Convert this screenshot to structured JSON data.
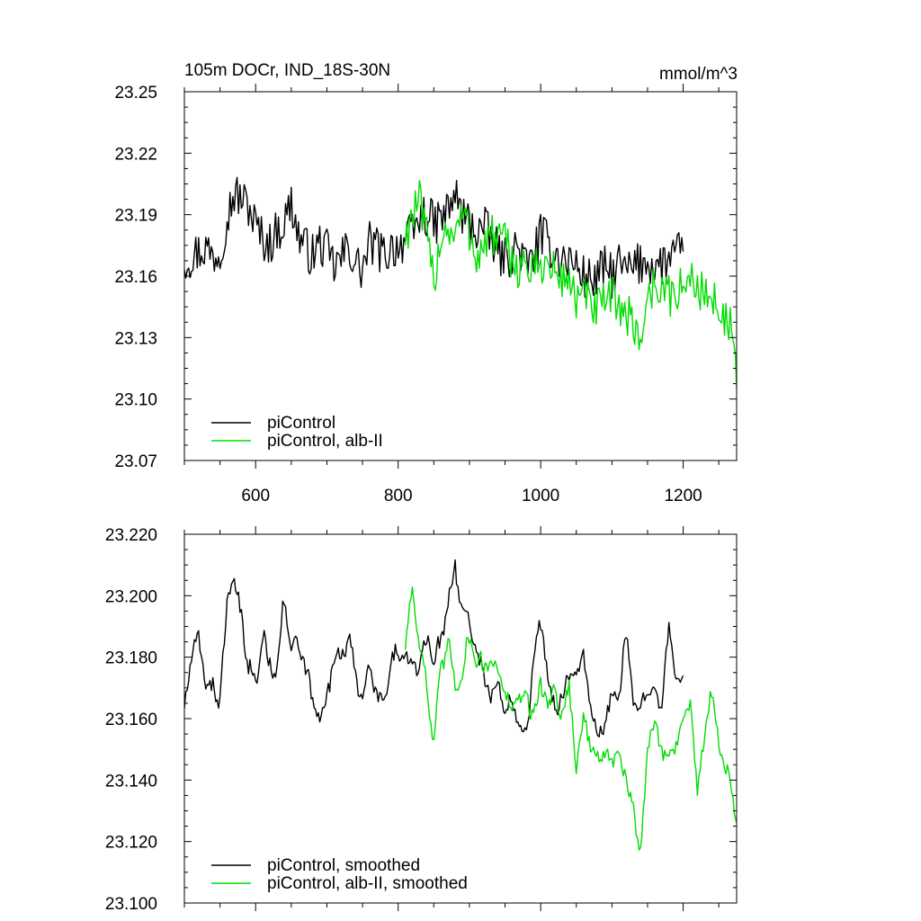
{
  "chart_data": [
    {
      "type": "line",
      "title": "105m DOCr, IND_18S-30N",
      "units": "mmol/m^3",
      "xlim": [
        500,
        1275
      ],
      "ylim": [
        23.07,
        23.25
      ],
      "x_ticks": [
        600,
        800,
        1000,
        1200
      ],
      "x_tick_labels": [
        "600",
        "800",
        "1000",
        "1200"
      ],
      "y_ticks": [
        23.07,
        23.1,
        23.13,
        23.16,
        23.19,
        23.22,
        23.25
      ],
      "y_tick_labels": [
        "23.07",
        "23.10",
        "23.13",
        "23.16",
        "23.19",
        "23.22",
        "23.25"
      ],
      "grid": false,
      "legend_position": "bottom-left",
      "series": [
        {
          "name": "piControl",
          "color": "#000000",
          "x": [
            500,
            510,
            520,
            530,
            540,
            550,
            560,
            570,
            580,
            590,
            600,
            610,
            620,
            630,
            640,
            650,
            660,
            670,
            680,
            690,
            700,
            710,
            720,
            730,
            740,
            750,
            760,
            770,
            780,
            790,
            800,
            810,
            820,
            830,
            840,
            850,
            860,
            870,
            880,
            890,
            900,
            910,
            920,
            930,
            940,
            950,
            960,
            970,
            980,
            990,
            1000,
            1010,
            1020,
            1030,
            1040,
            1050,
            1060,
            1070,
            1080,
            1090,
            1100,
            1110,
            1120,
            1130,
            1140,
            1150,
            1160,
            1170,
            1180,
            1190,
            1200
          ],
          "values": [
            23.168,
            23.17,
            23.172,
            23.174,
            23.17,
            23.172,
            23.19,
            23.2,
            23.198,
            23.194,
            23.185,
            23.178,
            23.176,
            23.182,
            23.186,
            23.196,
            23.18,
            23.174,
            23.17,
            23.176,
            23.172,
            23.165,
            23.168,
            23.175,
            23.166,
            23.163,
            23.176,
            23.174,
            23.17,
            23.174,
            23.175,
            23.178,
            23.18,
            23.188,
            23.19,
            23.185,
            23.188,
            23.192,
            23.2,
            23.19,
            23.186,
            23.182,
            23.184,
            23.178,
            23.172,
            23.168,
            23.172,
            23.174,
            23.164,
            23.17,
            23.18,
            23.176,
            23.172,
            23.168,
            23.168,
            23.165,
            23.16,
            23.158,
            23.16,
            23.164,
            23.16,
            23.166,
            23.162,
            23.164,
            23.166,
            23.168,
            23.164,
            23.166,
            23.168,
            23.17,
            23.172
          ]
        },
        {
          "name": "piControl, alb-II",
          "color": "#00dd00",
          "x": [
            810,
            820,
            830,
            840,
            850,
            860,
            870,
            880,
            890,
            900,
            910,
            920,
            930,
            940,
            950,
            960,
            970,
            980,
            990,
            1000,
            1010,
            1020,
            1030,
            1040,
            1050,
            1060,
            1070,
            1080,
            1090,
            1100,
            1110,
            1120,
            1130,
            1140,
            1150,
            1160,
            1170,
            1180,
            1190,
            1200,
            1210,
            1220,
            1230,
            1240,
            1250,
            1260,
            1270,
            1275
          ],
          "values": [
            23.18,
            23.19,
            23.196,
            23.178,
            23.158,
            23.18,
            23.184,
            23.18,
            23.19,
            23.182,
            23.17,
            23.174,
            23.18,
            23.178,
            23.176,
            23.168,
            23.164,
            23.166,
            23.16,
            23.168,
            23.164,
            23.162,
            23.158,
            23.16,
            23.148,
            23.15,
            23.146,
            23.144,
            23.146,
            23.15,
            23.148,
            23.14,
            23.138,
            23.128,
            23.15,
            23.156,
            23.154,
            23.15,
            23.152,
            23.154,
            23.158,
            23.156,
            23.152,
            23.146,
            23.148,
            23.138,
            23.132,
            23.105
          ]
        }
      ]
    },
    {
      "type": "line",
      "xlim": [
        500,
        1275
      ],
      "ylim": [
        23.1,
        23.22
      ],
      "x_ticks": [
        600,
        800,
        1000,
        1200
      ],
      "y_ticks": [
        23.1,
        23.12,
        23.14,
        23.16,
        23.18,
        23.2,
        23.22
      ],
      "y_tick_labels": [
        "23.100",
        "23.120",
        "23.140",
        "23.160",
        "23.180",
        "23.200",
        "23.220"
      ],
      "grid": false,
      "legend_position": "bottom-left",
      "series": [
        {
          "name": "piControl, smoothed",
          "color": "#000000",
          "x": [
            500,
            510,
            520,
            530,
            540,
            550,
            560,
            570,
            580,
            590,
            600,
            610,
            620,
            630,
            640,
            650,
            660,
            670,
            680,
            690,
            700,
            710,
            720,
            730,
            740,
            750,
            760,
            770,
            780,
            790,
            800,
            810,
            820,
            830,
            840,
            850,
            860,
            870,
            880,
            890,
            900,
            910,
            920,
            930,
            940,
            950,
            960,
            970,
            980,
            990,
            1000,
            1010,
            1020,
            1030,
            1040,
            1050,
            1060,
            1070,
            1080,
            1090,
            1100,
            1110,
            1120,
            1130,
            1140,
            1150,
            1160,
            1170,
            1180,
            1190,
            1200
          ],
          "values": [
            23.166,
            23.178,
            23.188,
            23.17,
            23.172,
            23.164,
            23.2,
            23.203,
            23.194,
            23.176,
            23.172,
            23.186,
            23.178,
            23.176,
            23.2,
            23.182,
            23.184,
            23.176,
            23.166,
            23.16,
            23.168,
            23.179,
            23.182,
            23.186,
            23.174,
            23.168,
            23.176,
            23.168,
            23.164,
            23.178,
            23.182,
            23.18,
            23.176,
            23.178,
            23.186,
            23.18,
            23.184,
            23.2,
            23.208,
            23.196,
            23.192,
            23.182,
            23.174,
            23.168,
            23.17,
            23.164,
            23.166,
            23.16,
            23.154,
            23.18,
            23.19,
            23.176,
            23.16,
            23.17,
            23.172,
            23.176,
            23.18,
            23.164,
            23.152,
            23.16,
            23.165,
            23.17,
            23.186,
            23.166,
            23.162,
            23.172,
            23.17,
            23.164,
            23.19,
            23.172,
            23.174
          ]
        },
        {
          "name": "piControl, alb-II, smoothed",
          "color": "#00dd00",
          "x": [
            810,
            820,
            830,
            840,
            850,
            860,
            870,
            880,
            890,
            900,
            910,
            920,
            930,
            940,
            950,
            960,
            970,
            980,
            990,
            1000,
            1010,
            1020,
            1030,
            1040,
            1050,
            1060,
            1070,
            1080,
            1090,
            1100,
            1110,
            1120,
            1130,
            1140,
            1150,
            1160,
            1170,
            1180,
            1190,
            1200,
            1210,
            1220,
            1230,
            1240,
            1250,
            1260,
            1270,
            1275
          ],
          "values": [
            23.184,
            23.202,
            23.186,
            23.17,
            23.152,
            23.175,
            23.186,
            23.17,
            23.176,
            23.186,
            23.18,
            23.176,
            23.18,
            23.176,
            23.168,
            23.162,
            23.168,
            23.166,
            23.162,
            23.17,
            23.166,
            23.168,
            23.162,
            23.17,
            23.144,
            23.16,
            23.152,
            23.146,
            23.15,
            23.144,
            23.15,
            23.138,
            23.132,
            23.115,
            23.152,
            23.158,
            23.15,
            23.148,
            23.152,
            23.16,
            23.166,
            23.135,
            23.155,
            23.168,
            23.154,
            23.142,
            23.136,
            23.126
          ]
        }
      ]
    }
  ]
}
